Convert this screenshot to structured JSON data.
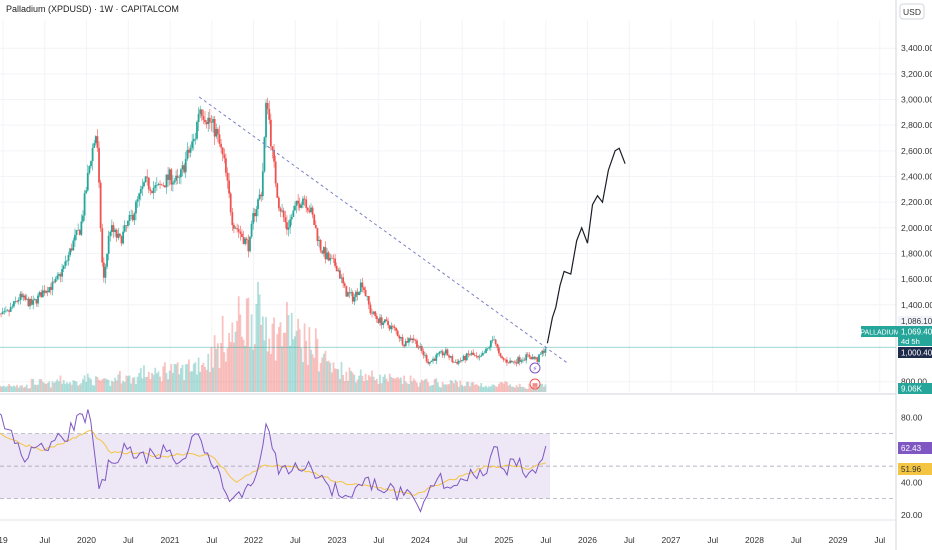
{
  "header": {
    "title": "Palladium (XPDUSD) · 1W · CAPITALCOM",
    "currency_button": "USD"
  },
  "price_labels": {
    "symbol": "PALLADIUM",
    "last_price": "1,069.40",
    "countdown": "4d 5h",
    "level_upper": "1,086.10",
    "level_lower": "1,000.40",
    "volume": "9.06K"
  },
  "rsi_labels": {
    "rsi_value": "62.43",
    "rsi_ma_value": "51.96"
  },
  "colors": {
    "up": "#26a69a",
    "down": "#ef5350",
    "trendline": "#7b7fc6",
    "projection": "#1b1d26",
    "rsi_line": "#7e57c2",
    "rsi_ma": "#f4c542",
    "rsi_band": "#ede7f6",
    "price_line": "#26a69a"
  },
  "chart_data": [
    {
      "type": "candlestick",
      "yaxis": {
        "min": 720,
        "max": 3620,
        "ticks": [
          {
            "value": 800,
            "label": "800.00"
          },
          {
            "value": 1400,
            "label": "1,400.00"
          },
          {
            "value": 1600,
            "label": "1,600.00"
          },
          {
            "value": 1800,
            "label": "1,800.00"
          },
          {
            "value": 2000,
            "label": "2,000.00"
          },
          {
            "value": 2200,
            "label": "2,200.00"
          },
          {
            "value": 2400,
            "label": "2,400.00"
          },
          {
            "value": 2600,
            "label": "2,600.00"
          },
          {
            "value": 2800,
            "label": "2,800.00"
          },
          {
            "value": 3000,
            "label": "3,000.00"
          },
          {
            "value": 3200,
            "label": "3,200.00"
          },
          {
            "value": 3400,
            "label": "3,400.00"
          }
        ]
      },
      "xaxis": {
        "ticks": [
          {
            "t": 2019.0,
            "label": "19"
          },
          {
            "t": 2019.5,
            "label": "Jul"
          },
          {
            "t": 2020.0,
            "label": "2020"
          },
          {
            "t": 2020.5,
            "label": "Jul"
          },
          {
            "t": 2021.0,
            "label": "2021"
          },
          {
            "t": 2021.5,
            "label": "Jul"
          },
          {
            "t": 2022.0,
            "label": "2022"
          },
          {
            "t": 2022.5,
            "label": "Jul"
          },
          {
            "t": 2023.0,
            "label": "2023"
          },
          {
            "t": 2023.5,
            "label": "Jul"
          },
          {
            "t": 2024.0,
            "label": "2024"
          },
          {
            "t": 2024.5,
            "label": "Jul"
          },
          {
            "t": 2025.0,
            "label": "2025"
          },
          {
            "t": 2025.5,
            "label": "Jul"
          },
          {
            "t": 2026.0,
            "label": "2026"
          },
          {
            "t": 2026.5,
            "label": "Jul"
          },
          {
            "t": 2027.0,
            "label": "2027"
          },
          {
            "t": 2027.5,
            "label": "Jul"
          },
          {
            "t": 2028.0,
            "label": "2028"
          },
          {
            "t": 2028.5,
            "label": "Jul"
          },
          {
            "t": 2029.0,
            "label": "2029"
          },
          {
            "t": 2029.5,
            "label": "Jul"
          }
        ]
      },
      "price_path": [
        [
          2018.9,
          1300
        ],
        [
          2019.05,
          1330
        ],
        [
          2019.2,
          1460
        ],
        [
          2019.35,
          1400
        ],
        [
          2019.5,
          1520
        ],
        [
          2019.62,
          1560
        ],
        [
          2019.75,
          1720
        ],
        [
          2019.85,
          1900
        ],
        [
          2019.93,
          2000
        ],
        [
          2020.05,
          2550
        ],
        [
          2020.12,
          2750
        ],
        [
          2020.2,
          1550
        ],
        [
          2020.28,
          2000
        ],
        [
          2020.4,
          1900
        ],
        [
          2020.55,
          2100
        ],
        [
          2020.7,
          2350
        ],
        [
          2020.85,
          2300
        ],
        [
          2021.0,
          2400
        ],
        [
          2021.1,
          2350
        ],
        [
          2021.2,
          2550
        ],
        [
          2021.3,
          2700
        ],
        [
          2021.35,
          2950
        ],
        [
          2021.45,
          2850
        ],
        [
          2021.55,
          2750
        ],
        [
          2021.65,
          2500
        ],
        [
          2021.75,
          2050
        ],
        [
          2021.85,
          1950
        ],
        [
          2021.95,
          1850
        ],
        [
          2022.0,
          2100
        ],
        [
          2022.1,
          2300
        ],
        [
          2022.16,
          3050
        ],
        [
          2022.22,
          2600
        ],
        [
          2022.3,
          2200
        ],
        [
          2022.4,
          2000
        ],
        [
          2022.5,
          2150
        ],
        [
          2022.6,
          2250
        ],
        [
          2022.7,
          2100
        ],
        [
          2022.8,
          1850
        ],
        [
          2022.9,
          1750
        ],
        [
          2023.0,
          1700
        ],
        [
          2023.1,
          1500
        ],
        [
          2023.2,
          1450
        ],
        [
          2023.3,
          1580
        ],
        [
          2023.4,
          1350
        ],
        [
          2023.5,
          1280
        ],
        [
          2023.6,
          1250
        ],
        [
          2023.7,
          1200
        ],
        [
          2023.8,
          1100
        ],
        [
          2023.9,
          1150
        ],
        [
          2024.0,
          1050
        ],
        [
          2024.1,
          950
        ],
        [
          2024.2,
          1000
        ],
        [
          2024.3,
          1030
        ],
        [
          2024.4,
          950
        ],
        [
          2024.5,
          970
        ],
        [
          2024.6,
          1020
        ],
        [
          2024.7,
          970
        ],
        [
          2024.8,
          1050
        ],
        [
          2024.88,
          1150
        ],
        [
          2024.95,
          980
        ],
        [
          2025.1,
          950
        ],
        [
          2025.2,
          980
        ],
        [
          2025.3,
          1000
        ],
        [
          2025.4,
          970
        ],
        [
          2025.5,
          1069
        ]
      ],
      "trendline": [
        [
          2021.35,
          3020
        ],
        [
          2025.75,
          950
        ]
      ],
      "projection_path": [
        [
          2025.52,
          1100
        ],
        [
          2025.58,
          1300
        ],
        [
          2025.62,
          1380
        ],
        [
          2025.67,
          1550
        ],
        [
          2025.72,
          1660
        ],
        [
          2025.8,
          1640
        ],
        [
          2025.87,
          1900
        ],
        [
          2025.93,
          2000
        ],
        [
          2026.0,
          1880
        ],
        [
          2026.06,
          2180
        ],
        [
          2026.12,
          2250
        ],
        [
          2026.18,
          2200
        ],
        [
          2026.25,
          2450
        ],
        [
          2026.33,
          2600
        ],
        [
          2026.38,
          2620
        ],
        [
          2026.45,
          2500
        ]
      ],
      "volume_profile": [
        3,
        4,
        3,
        5,
        4,
        6,
        5,
        7,
        6,
        5,
        8,
        7,
        10,
        9,
        12,
        11,
        14,
        16,
        22,
        28,
        36,
        40,
        38,
        30,
        34,
        28,
        24,
        18,
        12,
        10,
        9,
        8,
        7,
        6,
        6,
        5,
        5,
        4,
        5,
        4,
        4,
        3,
        4,
        3,
        3,
        3
      ]
    },
    {
      "type": "line",
      "name": "RSI",
      "yaxis": {
        "min": 18,
        "max": 92,
        "ticks": [
          {
            "value": 20,
            "label": "20.00"
          },
          {
            "value": 40,
            "label": "40.00"
          },
          {
            "value": 80,
            "label": "80.00"
          }
        ],
        "band": [
          30,
          70
        ]
      },
      "rsi_path": [
        [
          2018.9,
          80
        ],
        [
          2019.1,
          72
        ],
        [
          2019.3,
          55
        ],
        [
          2019.5,
          60
        ],
        [
          2019.7,
          68
        ],
        [
          2019.85,
          72
        ],
        [
          2019.95,
          82
        ],
        [
          2020.05,
          78
        ],
        [
          2020.15,
          36
        ],
        [
          2020.3,
          52
        ],
        [
          2020.45,
          64
        ],
        [
          2020.6,
          55
        ],
        [
          2020.8,
          58
        ],
        [
          2021.0,
          60
        ],
        [
          2021.15,
          54
        ],
        [
          2021.3,
          70
        ],
        [
          2021.45,
          58
        ],
        [
          2021.6,
          45
        ],
        [
          2021.75,
          30
        ],
        [
          2021.9,
          36
        ],
        [
          2022.0,
          40
        ],
        [
          2022.15,
          76
        ],
        [
          2022.3,
          45
        ],
        [
          2022.5,
          52
        ],
        [
          2022.7,
          48
        ],
        [
          2022.9,
          38
        ],
        [
          2023.1,
          32
        ],
        [
          2023.3,
          38
        ],
        [
          2023.45,
          42
        ],
        [
          2023.6,
          35
        ],
        [
          2023.8,
          32
        ],
        [
          2024.0,
          22
        ],
        [
          2024.2,
          42
        ],
        [
          2024.4,
          38
        ],
        [
          2024.6,
          48
        ],
        [
          2024.75,
          44
        ],
        [
          2024.88,
          62
        ],
        [
          2025.0,
          48
        ],
        [
          2025.15,
          50
        ],
        [
          2025.3,
          46
        ],
        [
          2025.42,
          52
        ],
        [
          2025.5,
          62.43
        ]
      ],
      "rsi_ma_path": [
        [
          2018.9,
          72
        ],
        [
          2019.2,
          64
        ],
        [
          2019.5,
          60
        ],
        [
          2019.8,
          66
        ],
        [
          2020.05,
          72
        ],
        [
          2020.3,
          58
        ],
        [
          2020.6,
          58
        ],
        [
          2020.9,
          56
        ],
        [
          2021.2,
          58
        ],
        [
          2021.5,
          56
        ],
        [
          2021.8,
          40
        ],
        [
          2022.1,
          50
        ],
        [
          2022.4,
          50
        ],
        [
          2022.7,
          46
        ],
        [
          2023.0,
          40
        ],
        [
          2023.3,
          38
        ],
        [
          2023.6,
          36
        ],
        [
          2023.9,
          32
        ],
        [
          2024.2,
          38
        ],
        [
          2024.5,
          44
        ],
        [
          2024.8,
          50
        ],
        [
          2025.1,
          50
        ],
        [
          2025.3,
          48
        ],
        [
          2025.5,
          51.96
        ]
      ]
    }
  ]
}
